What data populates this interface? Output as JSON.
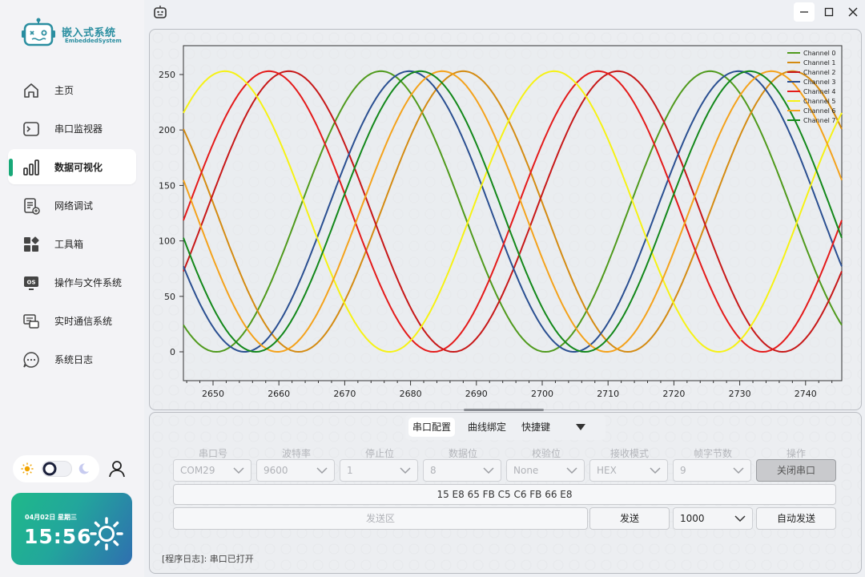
{
  "app": {
    "name": "嵌入式系统",
    "subtitle": "EmbeddedSystem"
  },
  "sidebar": {
    "items": [
      {
        "label": "主页",
        "icon": "home-icon"
      },
      {
        "label": "串口监视器",
        "icon": "terminal-icon"
      },
      {
        "label": "数据可视化",
        "icon": "bar-chart-icon",
        "active": true
      },
      {
        "label": "网络调试",
        "icon": "network-doc-icon"
      },
      {
        "label": "工具箱",
        "icon": "toolbox-icon"
      },
      {
        "label": "操作与文件系统",
        "icon": "os-icon"
      },
      {
        "label": "实时通信系统",
        "icon": "comm-icon"
      },
      {
        "label": "系统日志",
        "icon": "chat-log-icon"
      }
    ]
  },
  "clock": {
    "date": "04月02日  星期三",
    "time": "15:56"
  },
  "chart_data": {
    "type": "line",
    "title": "",
    "xlabel": "",
    "ylabel": "",
    "xlim": [
      2645.5,
      2745.5
    ],
    "ylim": [
      -26,
      276
    ],
    "xticks": [
      2650,
      2660,
      2670,
      2680,
      2690,
      2700,
      2710,
      2720,
      2730,
      2740
    ],
    "yticks": [
      0,
      50,
      100,
      150,
      200,
      250
    ],
    "grid": false,
    "legend": "top-right",
    "series": [
      {
        "name": "Channel 0",
        "color": "#4f9a1c",
        "amplitude": 126.5,
        "offset": 126.5,
        "period": 50,
        "peak_x": 2675.5
      },
      {
        "name": "Channel 1",
        "color": "#d48b12",
        "amplitude": 126.5,
        "offset": 126.5,
        "period": 50,
        "peak_x": 2688
      },
      {
        "name": "Channel 2",
        "color": "#c71818",
        "amplitude": 126.5,
        "offset": 126.5,
        "period": 50,
        "peak_x": 2661.5
      },
      {
        "name": "Channel 3",
        "color": "#2a4f91",
        "amplitude": 126.5,
        "offset": 126.5,
        "period": 50,
        "peak_x": 2679.8
      },
      {
        "name": "Channel 4",
        "color": "#e41a1a",
        "amplitude": 126.5,
        "offset": 126.5,
        "period": 50,
        "peak_x": 2708.5
      },
      {
        "name": "Channel 5",
        "color": "#f6f214",
        "amplitude": 126.5,
        "offset": 126.5,
        "period": 50,
        "peak_x": 2701.8
      },
      {
        "name": "Channel 6",
        "color": "#f4a21b",
        "amplitude": 126.5,
        "offset": 126.5,
        "period": 50,
        "peak_x": 2684.8
      },
      {
        "name": "Channel 7",
        "color": "#13881a",
        "amplitude": 126.5,
        "offset": 126.5,
        "period": 50,
        "peak_x": 2681.5
      }
    ]
  },
  "tabs": [
    {
      "label": "串口配置",
      "active": true
    },
    {
      "label": "曲线绑定"
    },
    {
      "label": "快捷键"
    }
  ],
  "serial": {
    "labels": [
      "串口号",
      "波特率",
      "停止位",
      "数据位",
      "校验位",
      "接收模式",
      "帧字节数",
      "操作"
    ],
    "values": [
      "COM29",
      "9600",
      "1",
      "8",
      "None",
      "HEX",
      "9"
    ],
    "close_button": "关闭串口"
  },
  "receive_text": "15 E8 65 FB C5 C6 FB 66 E8",
  "send": {
    "placeholder": "发送区",
    "button": "发送",
    "interval": "1000",
    "auto_button": "自动发送"
  },
  "log_text": "[程序日志]:  串口已打开",
  "colors": {
    "accent": "#18a878",
    "clock_from": "#1fb989",
    "clock_to": "#2f6fb0"
  }
}
